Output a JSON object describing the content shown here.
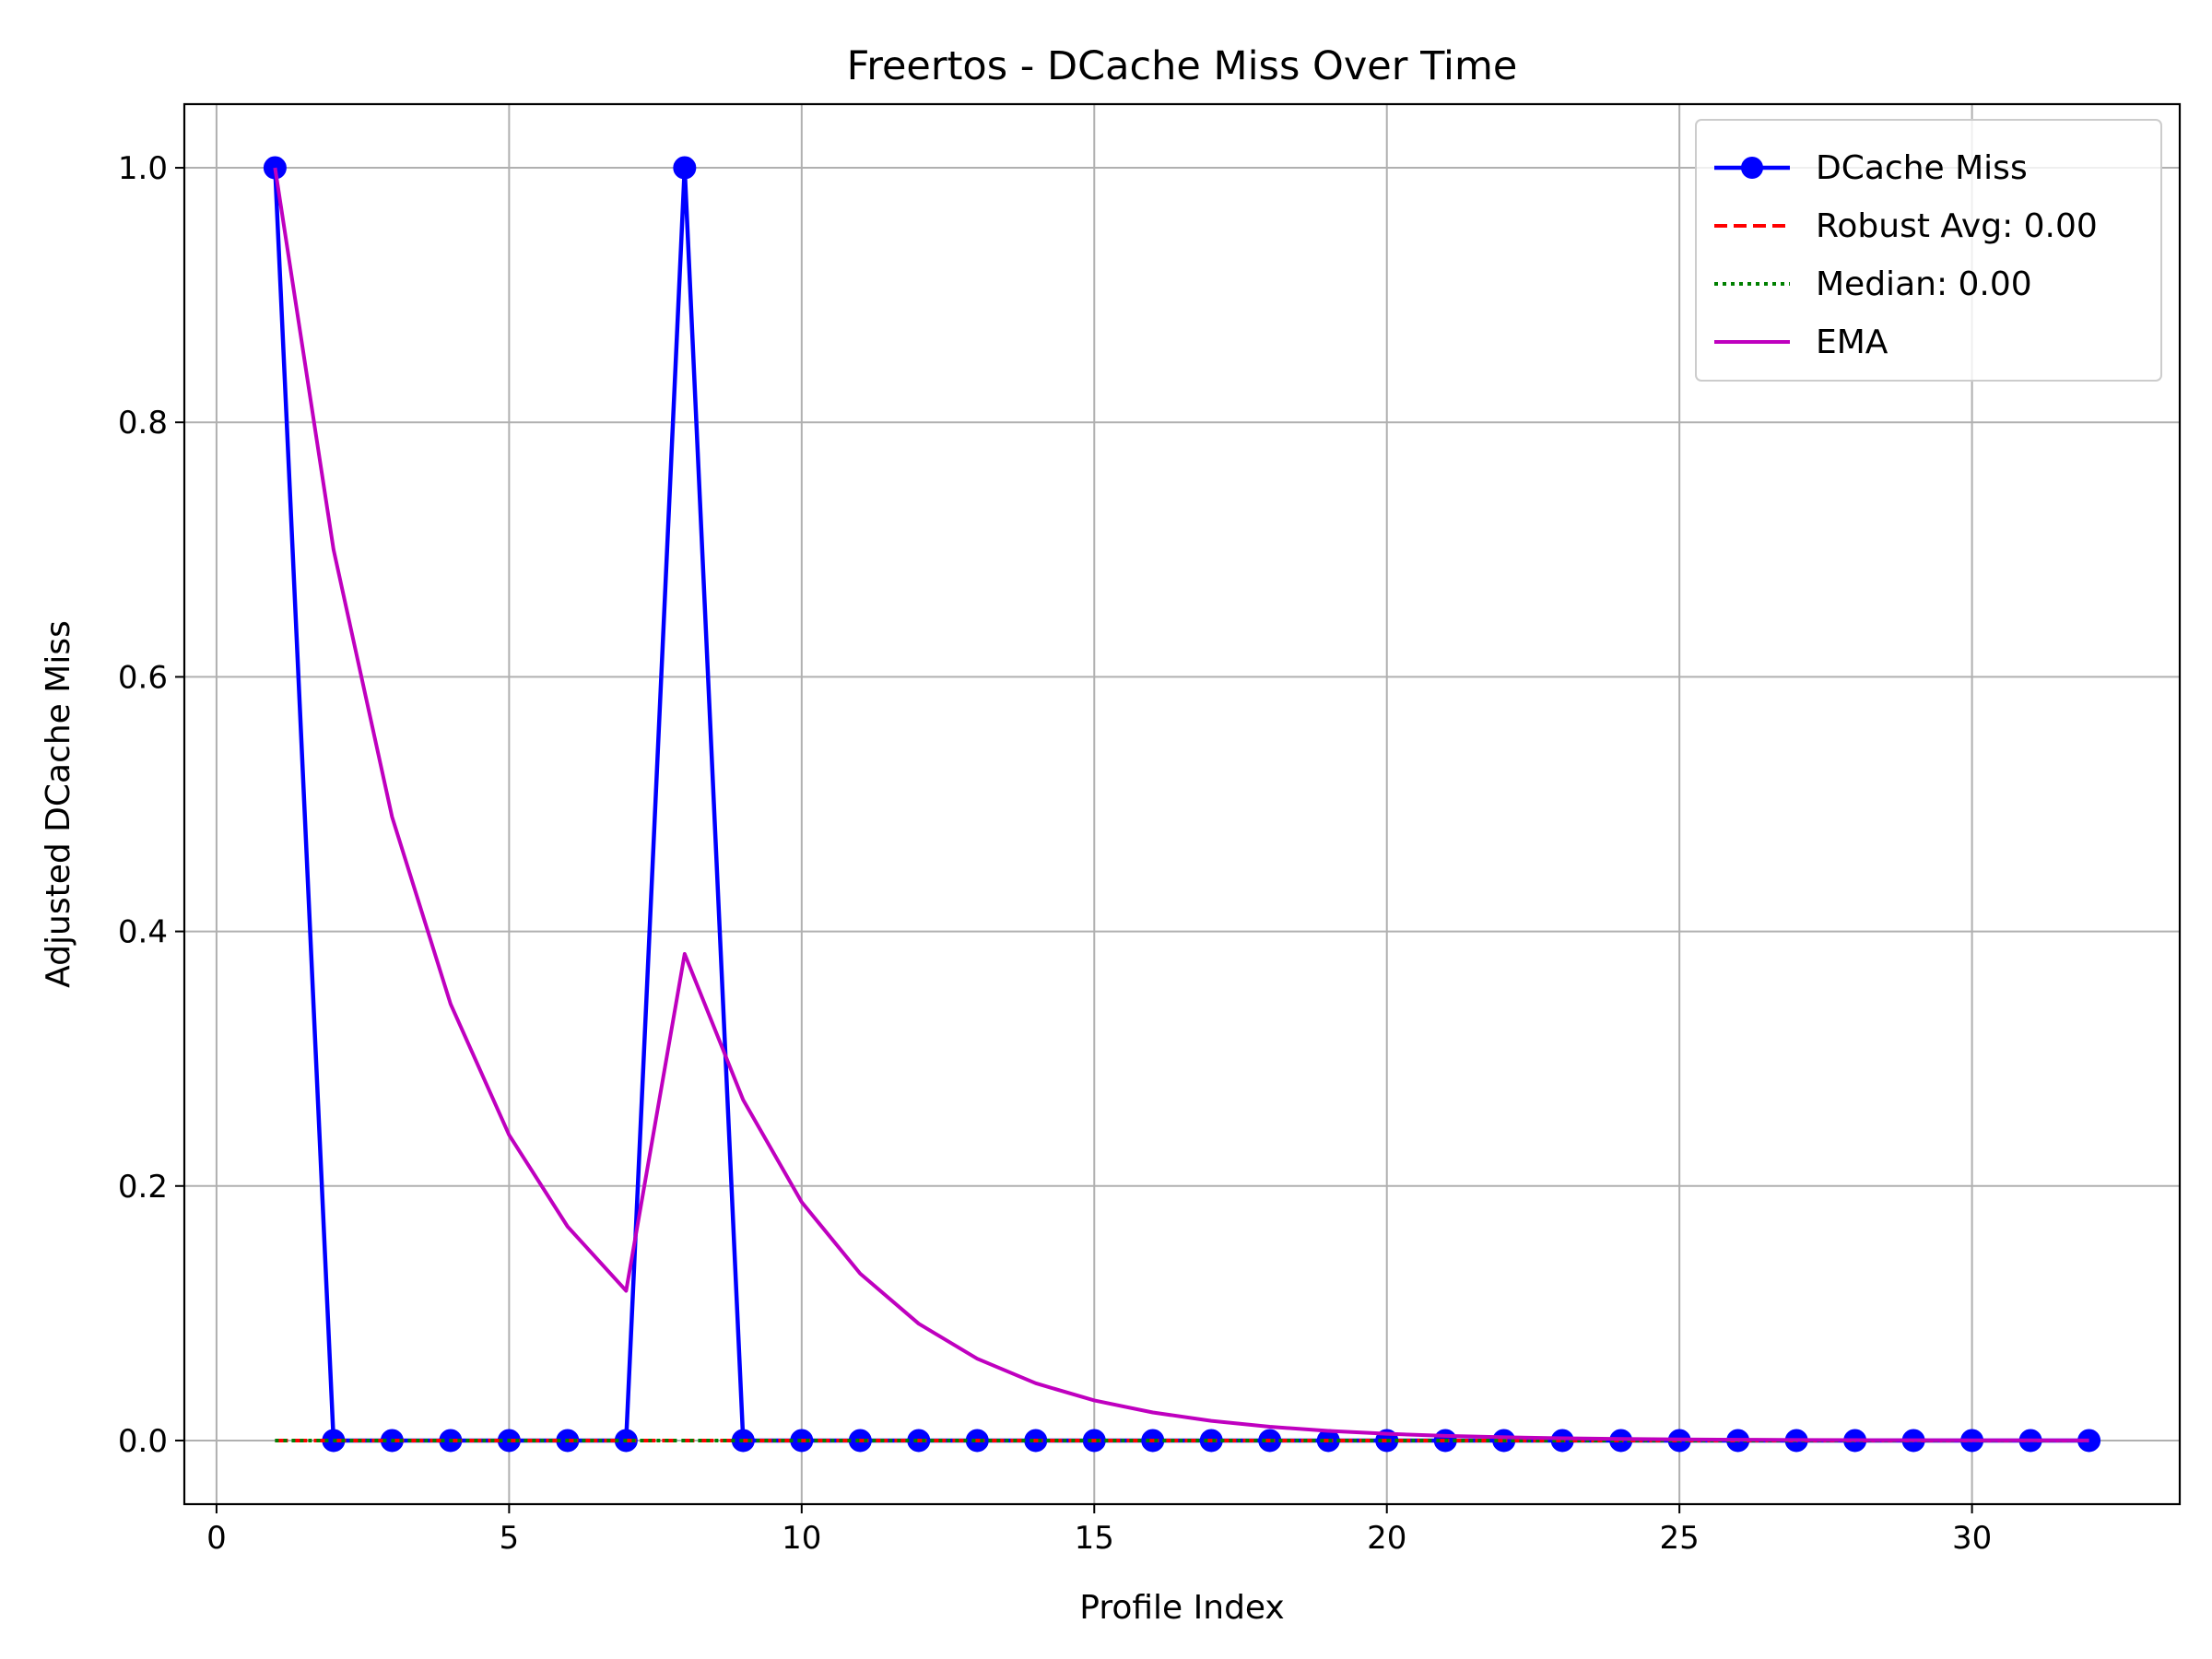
{
  "chart_data": {
    "type": "line",
    "title": "Freertos - DCache Miss Over Time",
    "xlabel": "Profile Index",
    "ylabel": "Adjusted DCache Miss",
    "xlim": [
      -0.55,
      33.55
    ],
    "ylim": [
      -0.05,
      1.05
    ],
    "xticks": [
      0,
      5,
      10,
      15,
      20,
      25,
      30
    ],
    "yticks": [
      0.0,
      0.2,
      0.4,
      0.6,
      0.8,
      1.0
    ],
    "xtick_labels": [
      "0",
      "5",
      "10",
      "15",
      "20",
      "25",
      "30"
    ],
    "ytick_labels": [
      "0.0",
      "0.2",
      "0.4",
      "0.6",
      "0.8",
      "1.0"
    ],
    "grid": true,
    "legend_position": "top-right",
    "x": [
      1,
      2,
      3,
      4,
      5,
      6,
      7,
      8,
      9,
      10,
      11,
      12,
      13,
      14,
      15,
      16,
      17,
      18,
      19,
      20,
      21,
      22,
      23,
      24,
      25,
      26,
      27,
      28,
      29,
      30,
      31,
      32
    ],
    "series": [
      {
        "name": "DCache Miss",
        "style": "solid-markers",
        "color": "#0000ff",
        "values": [
          1,
          0,
          0,
          0,
          0,
          0,
          0,
          1,
          0,
          0,
          0,
          0,
          0,
          0,
          0,
          0,
          0,
          0,
          0,
          0,
          0,
          0,
          0,
          0,
          0,
          0,
          0,
          0,
          0,
          0,
          0,
          0
        ]
      },
      {
        "name": "Robust Avg: 0.00",
        "style": "dashed",
        "color": "#ff0000",
        "values": [
          0,
          0,
          0,
          0,
          0,
          0,
          0,
          0,
          0,
          0,
          0,
          0,
          0,
          0,
          0,
          0,
          0,
          0,
          0,
          0,
          0,
          0,
          0,
          0,
          0,
          0,
          0,
          0,
          0,
          0,
          0,
          0
        ]
      },
      {
        "name": "Median: 0.00",
        "style": "dotted",
        "color": "#008000",
        "values": [
          0,
          0,
          0,
          0,
          0,
          0,
          0,
          0,
          0,
          0,
          0,
          0,
          0,
          0,
          0,
          0,
          0,
          0,
          0,
          0,
          0,
          0,
          0,
          0,
          0,
          0,
          0,
          0,
          0,
          0,
          0,
          0
        ]
      },
      {
        "name": "EMA",
        "style": "solid",
        "color": "#bf00bf",
        "values": [
          1.0,
          0.7,
          0.49,
          0.343,
          0.2401,
          0.16807,
          0.117649,
          0.382354,
          0.267648,
          0.187354,
          0.131148,
          0.091803,
          0.064262,
          0.044984,
          0.031488,
          0.022042,
          0.015429,
          0.0108,
          0.00756,
          0.005292,
          0.003705,
          0.002593,
          0.001815,
          0.001271,
          0.00089,
          0.000623,
          0.000436,
          0.000305,
          0.000214,
          0.00015,
          0.000105,
          7.3e-05
        ]
      }
    ]
  }
}
